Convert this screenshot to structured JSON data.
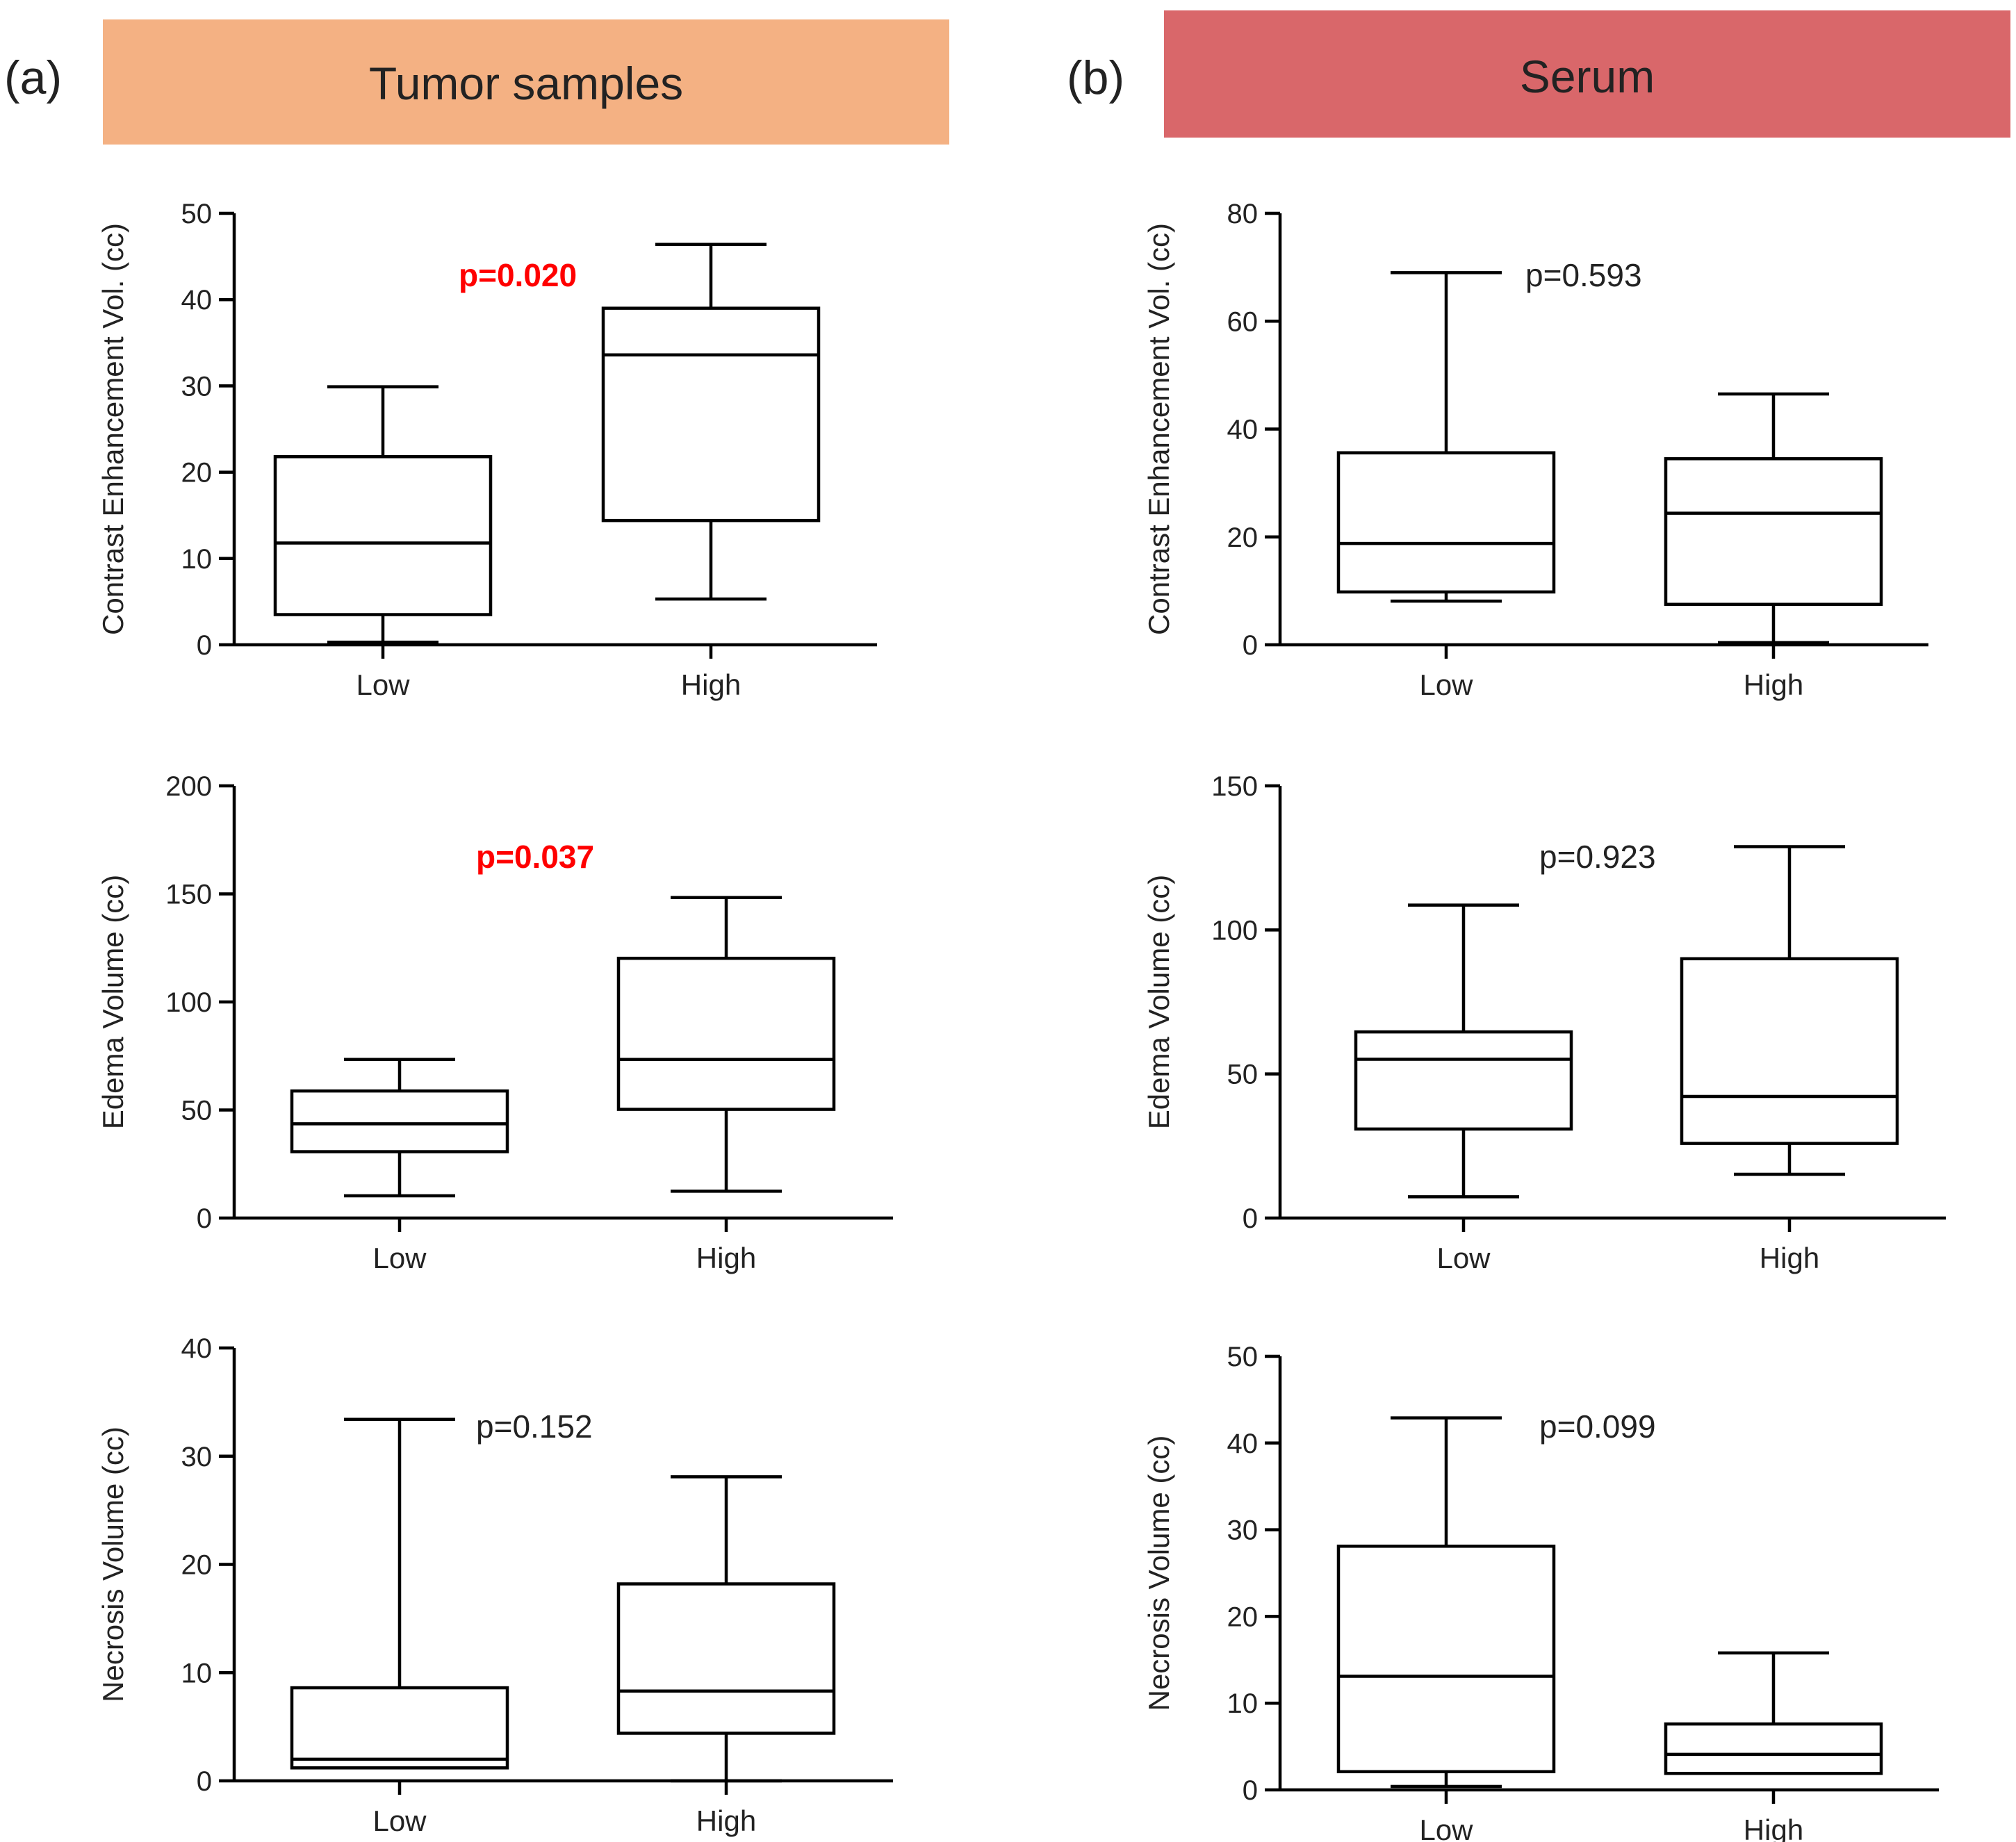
{
  "panels": [
    {
      "letter": "(a)",
      "header": "Tumor samples",
      "header_color": "#F4B183",
      "charts": [
        {
          "type": "boxplot",
          "ylabel": "Contrast Enhancement Vol. (cc)",
          "ylim": [
            0,
            50
          ],
          "yticks": [
            "0",
            "10",
            "20",
            "30",
            "40",
            "50"
          ],
          "categories": [
            "Low",
            "High"
          ],
          "boxes": [
            {
              "category": "Low",
              "min": 0.3,
              "q1": 3.5,
              "median": 11.8,
              "q3": 21.8,
              "max": 29.9
            },
            {
              "category": "High",
              "min": 5.3,
              "q1": 14.4,
              "median": 33.6,
              "q3": 39.0,
              "max": 46.4
            }
          ],
          "pvalue": "p=0.020",
          "pvalue_significant": true
        },
        {
          "type": "boxplot",
          "ylabel": "Edema Volume (cc)",
          "ylim": [
            0,
            200
          ],
          "yticks": [
            "0",
            "50",
            "100",
            "150",
            "200"
          ],
          "categories": [
            "Low",
            "High"
          ],
          "boxes": [
            {
              "category": "Low",
              "min": 10.3,
              "q1": 30.7,
              "median": 43.6,
              "q3": 58.8,
              "max": 73.4
            },
            {
              "category": "High",
              "min": 12.4,
              "q1": 50.3,
              "median": 73.4,
              "q3": 120.2,
              "max": 148.3
            }
          ],
          "pvalue": "p=0.037",
          "pvalue_significant": true
        },
        {
          "type": "boxplot",
          "ylabel": "Necrosis Volume (cc)",
          "ylim": [
            0,
            40
          ],
          "yticks": [
            "0",
            "10",
            "20",
            "30",
            "40"
          ],
          "categories": [
            "Low",
            "High"
          ],
          "boxes": [
            {
              "category": "Low",
              "min": 1.2,
              "q1": 1.2,
              "median": 2.0,
              "q3": 8.6,
              "max": 33.4
            },
            {
              "category": "High",
              "min": 0.0,
              "q1": 4.4,
              "median": 8.3,
              "q3": 18.2,
              "max": 28.1
            }
          ],
          "pvalue": "p=0.152",
          "pvalue_significant": false
        }
      ]
    },
    {
      "letter": "(b)",
      "header": "Serum",
      "header_color": "#D9676A",
      "charts": [
        {
          "type": "boxplot",
          "ylabel": "Contrast Enhancement Vol. (cc)",
          "ylim": [
            0,
            80
          ],
          "yticks": [
            "0",
            "20",
            "40",
            "60",
            "80"
          ],
          "categories": [
            "Low",
            "High"
          ],
          "boxes": [
            {
              "category": "Low",
              "min": 8.1,
              "q1": 9.8,
              "median": 18.8,
              "q3": 35.6,
              "max": 69.0
            },
            {
              "category": "High",
              "min": 0.4,
              "q1": 7.5,
              "median": 24.4,
              "q3": 34.5,
              "max": 46.5
            }
          ],
          "pvalue": "p=0.593",
          "pvalue_significant": false
        },
        {
          "type": "boxplot",
          "ylabel": "Edema Volume (cc)",
          "ylim": [
            0,
            150
          ],
          "yticks": [
            "0",
            "50",
            "100",
            "150"
          ],
          "categories": [
            "Low",
            "High"
          ],
          "boxes": [
            {
              "category": "Low",
              "min": 7.4,
              "q1": 30.9,
              "median": 55.1,
              "q3": 64.6,
              "max": 108.6
            },
            {
              "category": "High",
              "min": 15.2,
              "q1": 25.9,
              "median": 42.2,
              "q3": 90.0,
              "max": 128.9
            }
          ],
          "pvalue": "p=0.923",
          "pvalue_significant": false
        },
        {
          "type": "boxplot",
          "ylabel": "Necrosis Volume (cc)",
          "ylim": [
            0,
            50
          ],
          "yticks": [
            "0",
            "10",
            "20",
            "30",
            "40",
            "50"
          ],
          "categories": [
            "Low",
            "High"
          ],
          "boxes": [
            {
              "category": "Low",
              "min": 0.4,
              "q1": 2.1,
              "median": 13.1,
              "q3": 28.1,
              "max": 42.9
            },
            {
              "category": "High",
              "min": 1.9,
              "q1": 1.9,
              "median": 4.1,
              "q3": 7.6,
              "max": 15.8
            }
          ],
          "pvalue": "p=0.099",
          "pvalue_significant": false
        }
      ]
    }
  ],
  "chart_data": [
    {
      "type": "boxplot",
      "panel": "(a) Tumor samples",
      "ylabel": "Contrast Enhancement Vol. (cc)",
      "categories": [
        "Low",
        "High"
      ],
      "ylim": [
        0,
        50
      ],
      "pvalue": "p=0.020",
      "series": [
        {
          "name": "Low",
          "min": 0.3,
          "q1": 3.5,
          "median": 11.8,
          "q3": 21.8,
          "max": 29.9
        },
        {
          "name": "High",
          "min": 5.3,
          "q1": 14.4,
          "median": 33.6,
          "q3": 39.0,
          "max": 46.4
        }
      ]
    },
    {
      "type": "boxplot",
      "panel": "(a) Tumor samples",
      "ylabel": "Edema Volume (cc)",
      "categories": [
        "Low",
        "High"
      ],
      "ylim": [
        0,
        200
      ],
      "pvalue": "p=0.037",
      "series": [
        {
          "name": "Low",
          "min": 10.3,
          "q1": 30.7,
          "median": 43.6,
          "q3": 58.8,
          "max": 73.4
        },
        {
          "name": "High",
          "min": 12.4,
          "q1": 50.3,
          "median": 73.4,
          "q3": 120.2,
          "max": 148.3
        }
      ]
    },
    {
      "type": "boxplot",
      "panel": "(a) Tumor samples",
      "ylabel": "Necrosis Volume (cc)",
      "categories": [
        "Low",
        "High"
      ],
      "ylim": [
        0,
        40
      ],
      "pvalue": "p=0.152",
      "series": [
        {
          "name": "Low",
          "min": 1.2,
          "q1": 1.2,
          "median": 2.0,
          "q3": 8.6,
          "max": 33.4
        },
        {
          "name": "High",
          "min": 0.0,
          "q1": 4.4,
          "median": 8.3,
          "q3": 18.2,
          "max": 28.1
        }
      ]
    },
    {
      "type": "boxplot",
      "panel": "(b) Serum",
      "ylabel": "Contrast Enhancement Vol. (cc)",
      "categories": [
        "Low",
        "High"
      ],
      "ylim": [
        0,
        80
      ],
      "pvalue": "p=0.593",
      "series": [
        {
          "name": "Low",
          "min": 8.1,
          "q1": 9.8,
          "median": 18.8,
          "q3": 35.6,
          "max": 69.0
        },
        {
          "name": "High",
          "min": 0.4,
          "q1": 7.5,
          "median": 24.4,
          "q3": 34.5,
          "max": 46.5
        }
      ]
    },
    {
      "type": "boxplot",
      "panel": "(b) Serum",
      "ylabel": "Edema Volume (cc)",
      "categories": [
        "Low",
        "High"
      ],
      "ylim": [
        0,
        150
      ],
      "pvalue": "p=0.923",
      "series": [
        {
          "name": "Low",
          "min": 7.4,
          "q1": 30.9,
          "median": 55.1,
          "q3": 64.6,
          "max": 108.6
        },
        {
          "name": "High",
          "min": 15.2,
          "q1": 25.9,
          "median": 42.2,
          "q3": 90.0,
          "max": 128.9
        }
      ]
    },
    {
      "type": "boxplot",
      "panel": "(b) Serum",
      "ylabel": "Necrosis Volume (cc)",
      "categories": [
        "Low",
        "High"
      ],
      "ylim": [
        0,
        50
      ],
      "pvalue": "p=0.099",
      "series": [
        {
          "name": "Low",
          "min": 0.4,
          "q1": 2.1,
          "median": 13.1,
          "q3": 28.1,
          "max": 42.9
        },
        {
          "name": "High",
          "min": 1.9,
          "q1": 1.9,
          "median": 4.1,
          "q3": 7.6,
          "max": 15.8
        }
      ]
    }
  ],
  "colors": {
    "stroke": "#000000",
    "significant_pvalue": "#FF0000",
    "text": "#222222"
  }
}
